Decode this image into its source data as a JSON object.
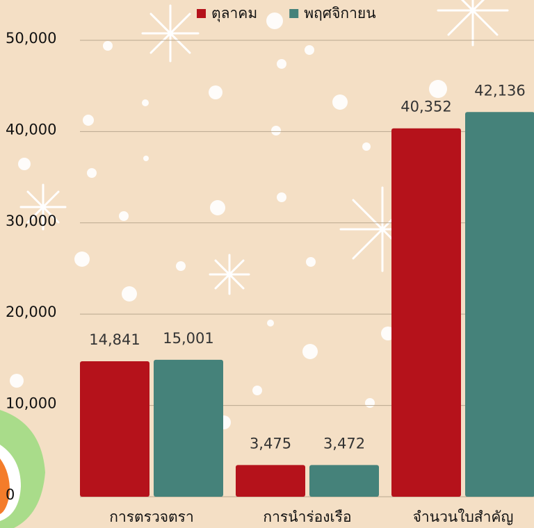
{
  "chart_data": {
    "type": "bar",
    "categories": [
      "การตรวจตรา",
      "การนำร่องเรือ",
      "จำนวนใบสำคัญ"
    ],
    "series": [
      {
        "name": "ตุลาคม",
        "color": "#b5121b",
        "values": [
          14841,
          3475,
          40352
        ],
        "value_labels": [
          "14,841",
          "3,475",
          "40,352"
        ]
      },
      {
        "name": "พฤศจิกายน",
        "color": "#45827a",
        "values": [
          15001,
          3472,
          42136
        ],
        "value_labels": [
          "15,001",
          "3,472",
          "42,136"
        ]
      }
    ],
    "ylim": [
      0,
      54000
    ],
    "yticks": [
      0,
      {
        "value": 10000,
        "label": "10,000"
      },
      {
        "value": 20000,
        "label": "20,000"
      },
      {
        "value": 30000,
        "label": "30,000"
      },
      {
        "value": 40000,
        "label": "40,000"
      },
      {
        "value": 50000,
        "label": "50,000"
      }
    ],
    "grid": true,
    "legend": "top"
  }
}
